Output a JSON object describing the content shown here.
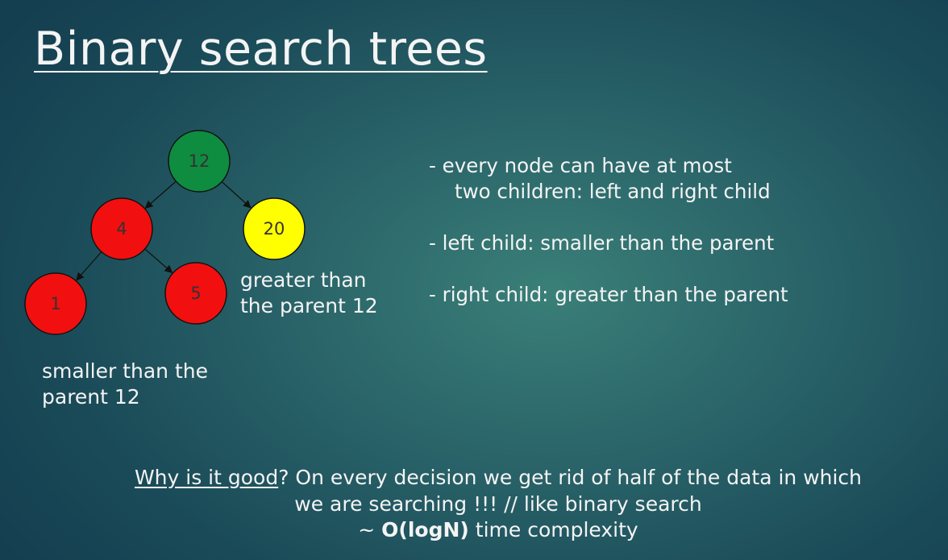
{
  "title": "Binary search trees",
  "tree": {
    "nodes": [
      {
        "id": "root",
        "label": "12",
        "color": "#0e8c40"
      },
      {
        "id": "left",
        "label": "4",
        "color": "#f20f0f"
      },
      {
        "id": "right",
        "label": "20",
        "color": "#ffff00"
      },
      {
        "id": "left-left",
        "label": "1",
        "color": "#f20f0f"
      },
      {
        "id": "left-right",
        "label": "5",
        "color": "#f20f0f"
      }
    ],
    "edges": [
      [
        "root",
        "left"
      ],
      [
        "root",
        "right"
      ],
      [
        "left",
        "left-left"
      ],
      [
        "left",
        "left-right"
      ]
    ]
  },
  "annotations": {
    "right_line1": "greater than",
    "right_line2": "the parent 12",
    "left_line1": "smaller than the",
    "left_line2": "parent 12"
  },
  "rules": {
    "r1_line1": "- every node can have at most",
    "r1_line2": "two children: left and right child",
    "r2": "- left child: smaller than the parent",
    "r3": "- right child: greater than the parent"
  },
  "bottom": {
    "why": "Why is it good",
    "line1_rest": "? On every decision we get rid of half of the data in which",
    "line2": "we are searching !!!  // like binary search",
    "line3_prefix": "~ ",
    "complexity": "O(logN)",
    "line3_suffix": " time complexity"
  }
}
